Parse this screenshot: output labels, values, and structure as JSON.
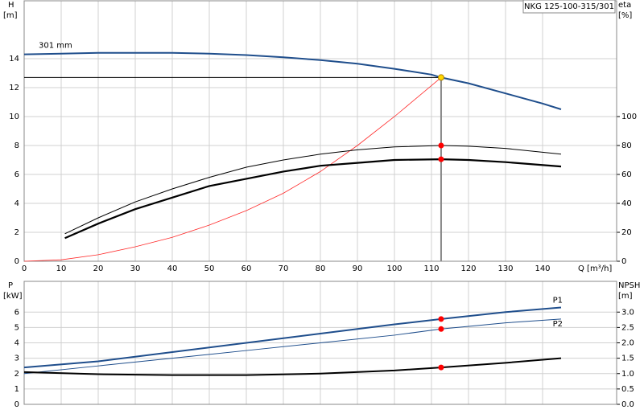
{
  "chart_data": [
    {
      "type": "line",
      "model_label": "NKG 125-100-315/301",
      "y_label": "H",
      "y_unit": "[m]",
      "y2_label": "eta",
      "y2_unit": "[%]",
      "x_label": "Q [m³/h]",
      "xlim": [
        0,
        160
      ],
      "xticks": [
        0,
        10,
        20,
        30,
        40,
        50,
        60,
        70,
        80,
        90,
        100,
        110,
        120,
        130,
        140
      ],
      "ylim": [
        0,
        18
      ],
      "yticks": [
        0,
        2,
        4,
        6,
        8,
        10,
        12,
        14
      ],
      "y2lim": [
        0,
        180
      ],
      "y2ticks": [
        0,
        20,
        40,
        60,
        80,
        100
      ],
      "grid": true,
      "duty_point": {
        "x": 112.6,
        "y": 12.7
      },
      "series": [
        {
          "name": "301 mm",
          "color": "#1f4e8c",
          "width": 2,
          "x": [
            0,
            10,
            20,
            30,
            40,
            50,
            60,
            70,
            80,
            90,
            100,
            110,
            112.6,
            120,
            130,
            140,
            145
          ],
          "values": [
            14.3,
            14.35,
            14.4,
            14.4,
            14.4,
            14.35,
            14.25,
            14.1,
            13.9,
            13.65,
            13.3,
            12.9,
            12.7,
            12.3,
            11.6,
            10.9,
            10.5
          ]
        },
        {
          "color": "#ff2a2a",
          "width": 0.8,
          "x": [
            0,
            10,
            20,
            30,
            40,
            50,
            60,
            70,
            80,
            90,
            100,
            112.6
          ],
          "values": [
            0,
            0.1,
            0.45,
            1.0,
            1.65,
            2.5,
            3.5,
            4.7,
            6.2,
            8.0,
            10.0,
            12.7
          ]
        },
        {
          "axis": "y2",
          "color": "#000000",
          "width": 1,
          "x": [
            11,
            20,
            30,
            40,
            50,
            60,
            70,
            80,
            90,
            100,
            112.6,
            120,
            130,
            145
          ],
          "values": [
            19,
            30,
            41,
            50,
            58,
            65,
            70,
            74,
            77,
            79,
            80,
            79.5,
            78,
            74
          ]
        },
        {
          "axis": "y2",
          "color": "#000000",
          "width": 2.2,
          "x": [
            11,
            20,
            30,
            40,
            50,
            60,
            70,
            80,
            90,
            100,
            112.6,
            120,
            130,
            145
          ],
          "values": [
            16,
            26,
            36,
            44,
            52,
            57,
            62,
            66,
            68,
            70,
            70.5,
            70,
            68.5,
            65.5
          ]
        },
        {
          "marker": true,
          "color": "#ffd700",
          "x": [
            112.6
          ],
          "values": [
            12.7
          ]
        },
        {
          "marker": true,
          "axis": "y2",
          "color": "#ff0000",
          "x": [
            112.6,
            112.6
          ],
          "values": [
            80,
            70.5
          ]
        }
      ]
    },
    {
      "type": "line",
      "y_label": "P",
      "y_unit": "[kW]",
      "y2_label": "NPSH",
      "y2_unit": "[m]",
      "xlim": [
        0,
        160
      ],
      "ylim": [
        0,
        8
      ],
      "yticks": [
        0,
        1,
        2,
        3,
        4,
        5,
        6
      ],
      "y2lim": [
        0,
        4
      ],
      "y2ticks": [
        {
          "value": 0,
          "label": "0.0"
        },
        0.5,
        {
          "value": 1,
          "label": "1.0"
        },
        1.5,
        {
          "value": 2,
          "label": "2.0"
        },
        2.5,
        {
          "value": 3,
          "label": "3.0"
        }
      ],
      "grid": true,
      "series": [
        {
          "name": "P1",
          "color": "#1f4e8c",
          "width": 2,
          "x": [
            0,
            20,
            40,
            60,
            80,
            100,
            112.6,
            130,
            145
          ],
          "values": [
            2.4,
            2.8,
            3.4,
            4.0,
            4.6,
            5.2,
            5.55,
            6.0,
            6.3
          ]
        },
        {
          "name": "P2",
          "color": "#1f4e8c",
          "width": 1,
          "x": [
            0,
            20,
            40,
            60,
            80,
            100,
            112.6,
            130,
            145
          ],
          "values": [
            2.0,
            2.5,
            3.0,
            3.5,
            4.0,
            4.5,
            4.9,
            5.3,
            5.55
          ]
        },
        {
          "axis": "y2",
          "color": "#000000",
          "width": 2,
          "x": [
            0,
            20,
            40,
            60,
            80,
            100,
            112.6,
            130,
            145
          ],
          "values": [
            1.05,
            0.98,
            0.95,
            0.95,
            1.0,
            1.1,
            1.2,
            1.35,
            1.5
          ]
        },
        {
          "marker": true,
          "color": "#ff0000",
          "x": [
            112.6,
            112.6
          ],
          "values": [
            5.55,
            4.9
          ]
        },
        {
          "marker": true,
          "axis": "y2",
          "color": "#ff0000",
          "x": [
            112.6
          ],
          "values": [
            1.2
          ]
        }
      ]
    }
  ]
}
